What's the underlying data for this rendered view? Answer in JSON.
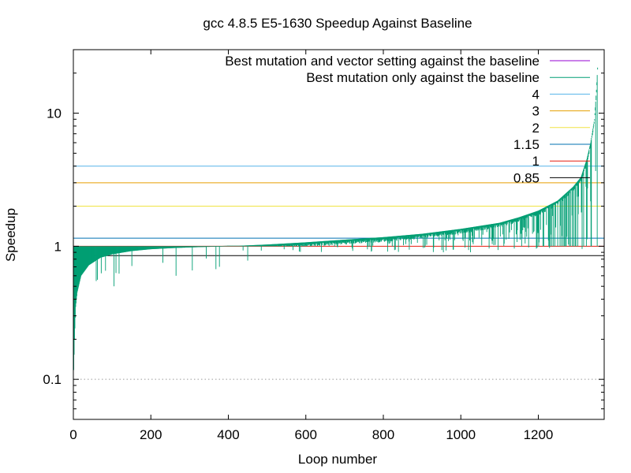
{
  "chart_data": {
    "type": "line",
    "title": "gcc 4.8.5 E5-1630 Speedup Against Baseline",
    "xlabel": "Loop number",
    "ylabel": "Speedup",
    "xlim": [
      0,
      1370
    ],
    "ylim": [
      0.05,
      30
    ],
    "yscale": "log",
    "xticks": [
      0,
      200,
      400,
      600,
      800,
      1000,
      1200
    ],
    "yticks": [
      0.1,
      1,
      10
    ],
    "grid": "dotted line at 0.1 only",
    "legend_position": "top-right",
    "series": [
      {
        "name": "Best mutation and vector setting against the baseline",
        "color": "#9400d3",
        "style": "impulses",
        "values": []
      },
      {
        "name": "Best mutation only against the baseline",
        "color": "#009e73",
        "style": "impulses",
        "note_curve": "sorted ascending envelope",
        "envelope": [
          [
            0,
            0.09
          ],
          [
            3,
            0.2
          ],
          [
            6,
            0.35
          ],
          [
            10,
            0.45
          ],
          [
            20,
            0.6
          ],
          [
            40,
            0.72
          ],
          [
            70,
            0.82
          ],
          [
            100,
            0.87
          ],
          [
            150,
            0.92
          ],
          [
            200,
            0.95
          ],
          [
            260,
            0.97
          ],
          [
            300,
            0.98
          ],
          [
            400,
            1.0
          ],
          [
            500,
            1.03
          ],
          [
            600,
            1.07
          ],
          [
            700,
            1.12
          ],
          [
            800,
            1.17
          ],
          [
            900,
            1.24
          ],
          [
            1000,
            1.35
          ],
          [
            1100,
            1.5
          ],
          [
            1150,
            1.65
          ],
          [
            1200,
            1.85
          ],
          [
            1250,
            2.2
          ],
          [
            1290,
            2.8
          ],
          [
            1310,
            3.3
          ],
          [
            1325,
            4.5
          ],
          [
            1335,
            6.0
          ],
          [
            1345,
            9.0
          ],
          [
            1350,
            15
          ],
          [
            1353,
            22
          ]
        ]
      },
      {
        "name": "4",
        "color": "#56b4e9",
        "style": "hline",
        "y": 4
      },
      {
        "name": "3",
        "color": "#e69f00",
        "style": "hline",
        "y": 3
      },
      {
        "name": "2",
        "color": "#f0e442",
        "style": "hline",
        "y": 2
      },
      {
        "name": "1.15",
        "color": "#0072b2",
        "style": "hline",
        "y": 1.15
      },
      {
        "name": "1",
        "color": "#e51e10",
        "style": "hline",
        "y": 1
      },
      {
        "name": "0.85",
        "color": "#000000",
        "style": "hline",
        "y": 0.85
      }
    ]
  }
}
